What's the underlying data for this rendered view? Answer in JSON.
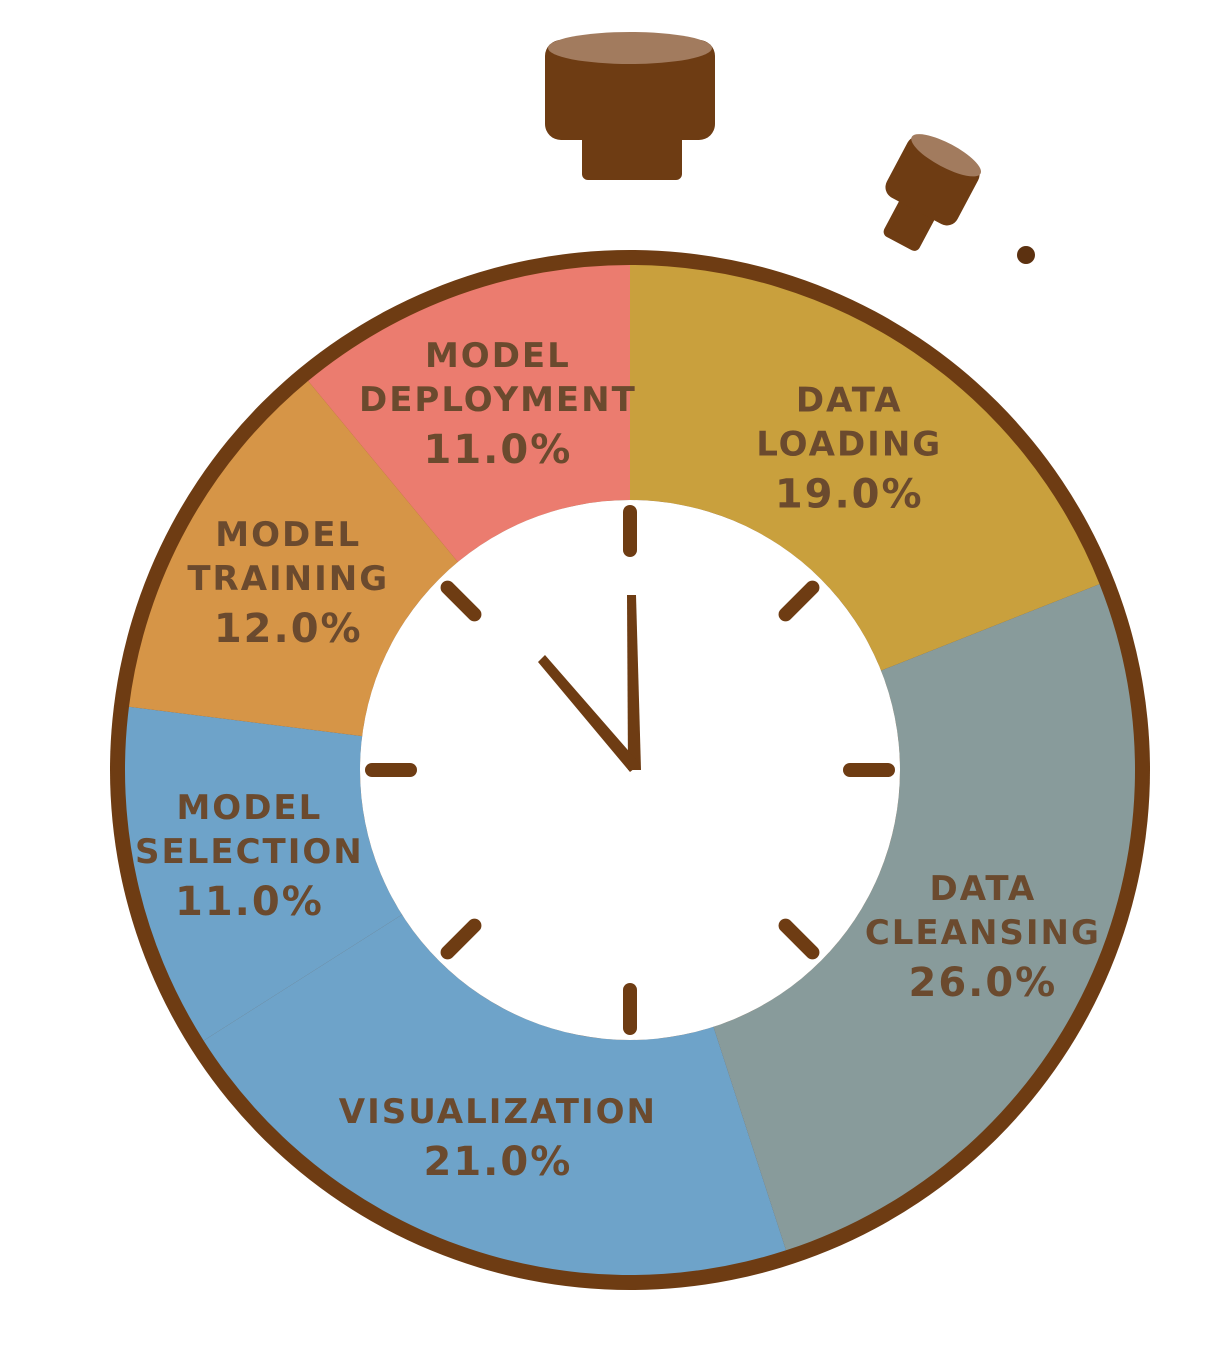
{
  "colors": {
    "bezel": "#6e3c13",
    "bezel_dark": "#5c3110",
    "crown_top": "#a27b5e",
    "face": "#ffffff",
    "hands": "#6e3c13",
    "label_text": "#6b4a2e"
  },
  "chart_data": {
    "type": "pie",
    "style": "donut inside a stopwatch",
    "start_angle_deg": 0,
    "direction": "clockwise",
    "slices": [
      {
        "label_lines": [
          "DATA",
          "LOADING"
        ],
        "label": "DATA LOADING",
        "value": 19.0,
        "value_text": "19.0%",
        "color": "#c9a03d"
      },
      {
        "label_lines": [
          "DATA",
          "CLEANSING"
        ],
        "label": "DATA CLEANSING",
        "value": 26.0,
        "value_text": "26.0%",
        "color": "#889b9b"
      },
      {
        "label_lines": [
          "VISUALIZATION"
        ],
        "label": "VISUALIZATION",
        "value": 21.0,
        "value_text": "21.0%",
        "color": "#6ea3c9"
      },
      {
        "label_lines": [
          "MODEL",
          "SELECTION"
        ],
        "label": "MODEL SELECTION",
        "value": 11.0,
        "value_text": "11.0%",
        "color": "#6ea3c9"
      },
      {
        "label_lines": [
          "MODEL",
          "TRAINING"
        ],
        "label": "MODEL TRAINING",
        "value": 12.0,
        "value_text": "12.0%",
        "color": "#d69547"
      },
      {
        "label_lines": [
          "MODEL",
          "DEPLOYMENT"
        ],
        "label": "MODEL DEPLOYMENT",
        "value": 11.0,
        "value_text": "11.0%",
        "color": "#eb7c6f"
      }
    ]
  }
}
